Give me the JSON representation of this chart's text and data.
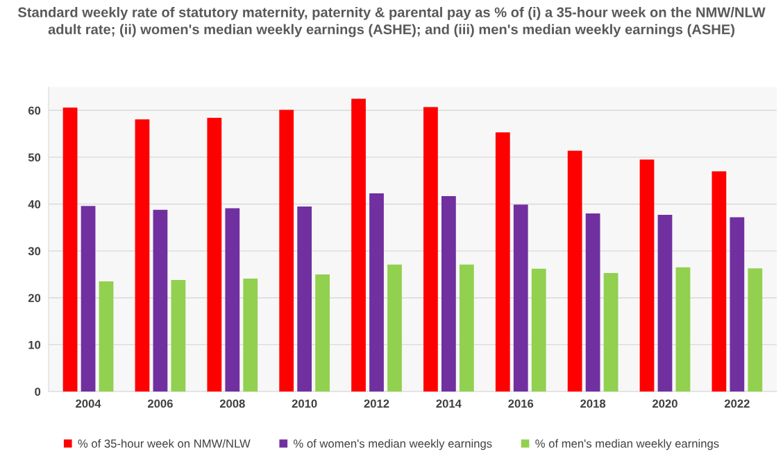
{
  "chart_data": {
    "type": "bar",
    "title": "Standard weekly rate of statutory maternity, paternity & parental pay as % of (i) a 35-hour week on the NMW/NLW adult rate; (ii) women's median weekly earnings (ASHE); and (iii) men's median weekly earnings (ASHE)",
    "categories": [
      "2004",
      "2006",
      "2008",
      "2010",
      "2012",
      "2014",
      "2016",
      "2018",
      "2020",
      "2022"
    ],
    "series": [
      {
        "name": "% of 35-hour week on NMW/NLW",
        "color": "#ff0000",
        "values": [
          60.6,
          58.1,
          58.4,
          60.1,
          62.5,
          60.7,
          55.3,
          51.4,
          49.5,
          47.0
        ]
      },
      {
        "name": "% of women's median weekly earnings",
        "color": "#7030a0",
        "values": [
          39.6,
          38.8,
          39.1,
          39.5,
          42.3,
          41.7,
          39.9,
          38.0,
          37.7,
          37.2
        ]
      },
      {
        "name": "% of men's median weekly earnings",
        "color": "#92d050",
        "values": [
          23.5,
          23.8,
          24.1,
          25.0,
          27.1,
          27.1,
          26.2,
          25.3,
          26.5,
          26.3
        ]
      }
    ],
    "ylim": [
      0,
      65
    ],
    "yticks": [
      0,
      10,
      20,
      30,
      40,
      50,
      60
    ],
    "grid": "y",
    "legend": "bottom"
  }
}
